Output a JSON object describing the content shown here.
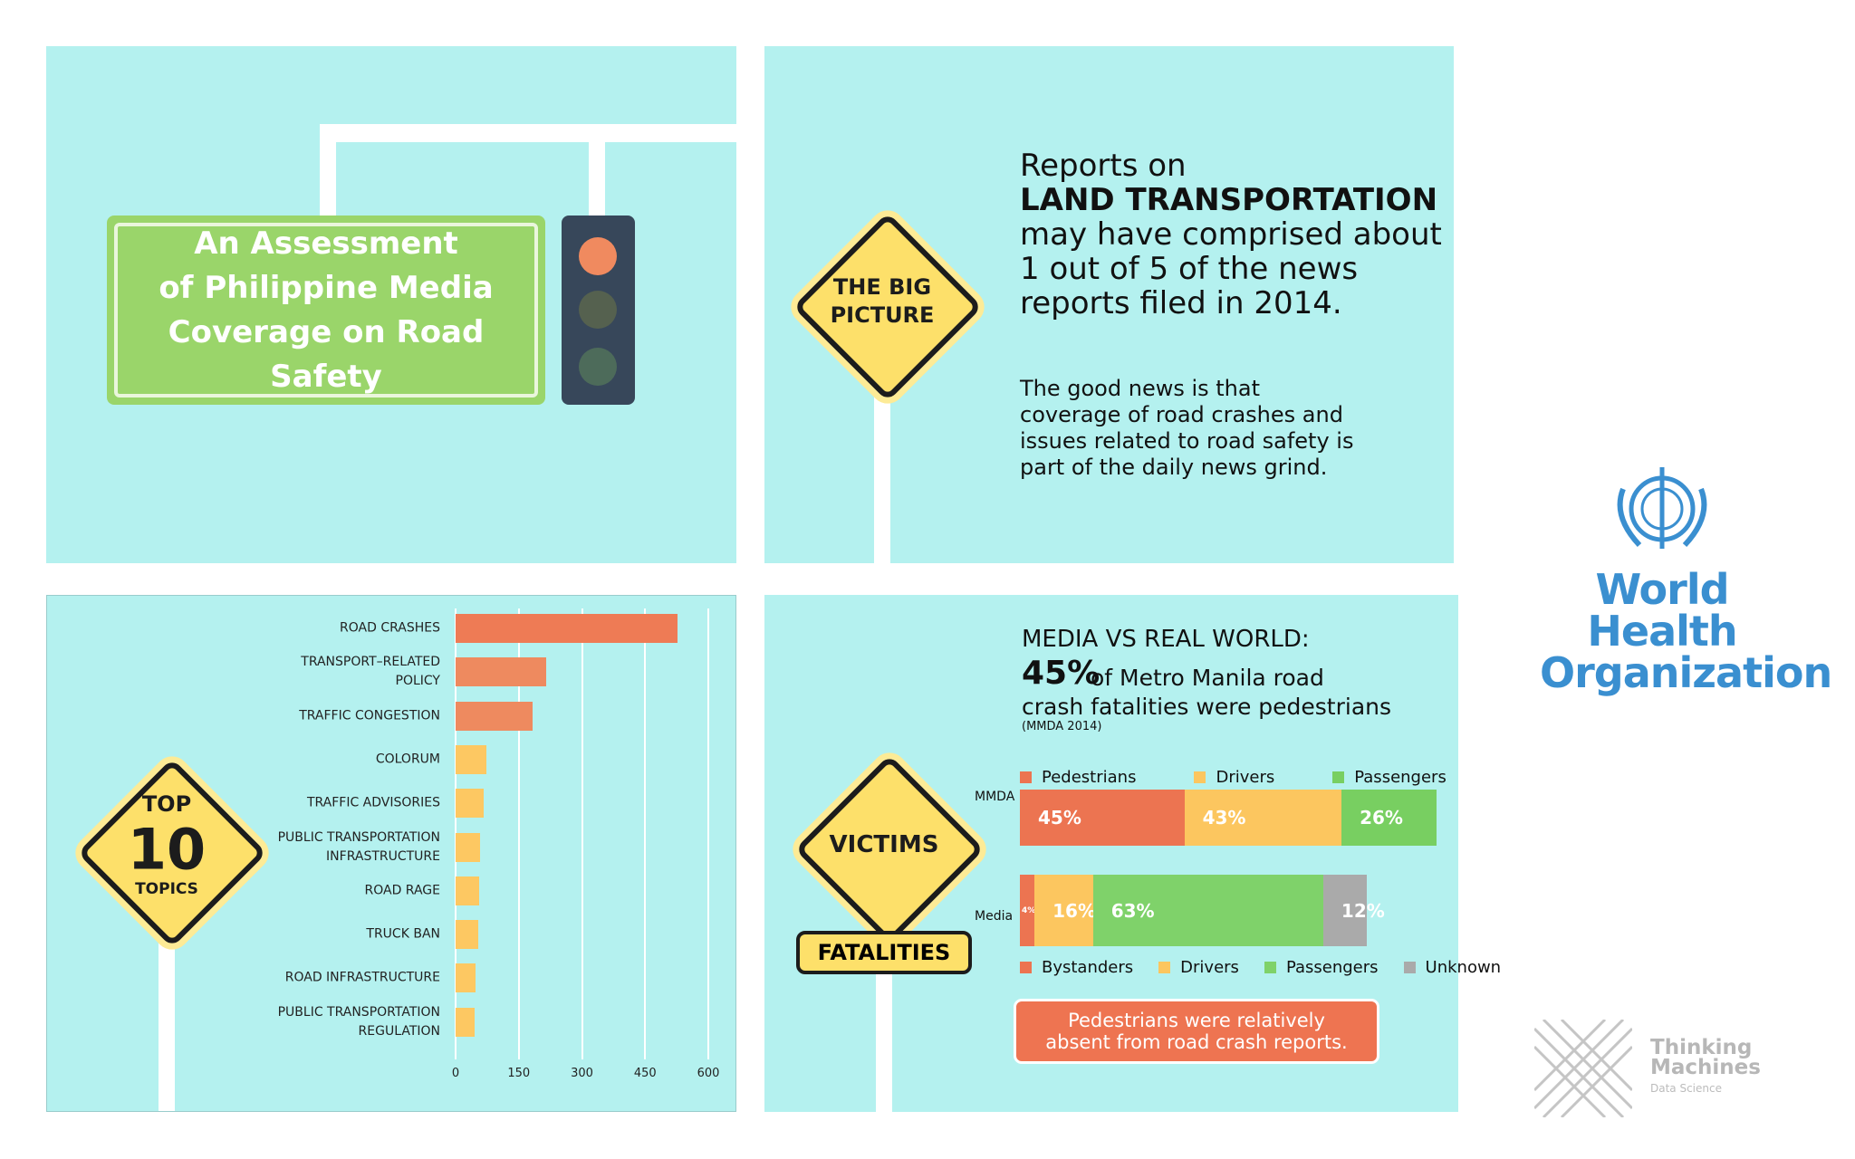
{
  "panels": {
    "title_sign": "An Assessment\nof Philippine Media\nCoverage on Road Safety",
    "big_picture": {
      "sign": "THE BIG\nPICTURE",
      "lead": "Reports on",
      "emphasis": "LAND TRANSPORTATION",
      "statement": "may have comprised about\n1 out of 5 of the news\nreports filed in 2014.",
      "note": "The good news is that\ncoverage of road crashes and\nissues related to road safety is\npart of the daily news grind."
    },
    "top_topics": {
      "sign_top": "TOP",
      "sign_number": "10",
      "sign_bottom": "TOPICS"
    },
    "victims": {
      "sign": "VICTIMS",
      "plate": "FATALITIES",
      "heading": "MEDIA VS REAL WORLD:",
      "highlight": "45%",
      "statement": "of Metro Manila road\ncrash fatalities were pedestrians",
      "source": "(MMDA 2014)",
      "callout": "Pedestrians were relatively\nabsent from road crash reports."
    }
  },
  "logos": {
    "who": "World Health\nOrganization",
    "tm_name": "Thinking\nMachines",
    "tm_sub": "Data Science"
  },
  "chart_data": [
    {
      "type": "bar",
      "orientation": "horizontal",
      "categories": [
        "ROAD CRASHES",
        "TRANSPORT–RELATED\nPOLICY",
        "TRAFFIC CONGESTION",
        "COLORUM",
        "TRAFFIC ADVISORIES",
        "PUBLIC TRANSPORTATION\nINFRASTRUCTURE",
        "ROAD RAGE",
        "TRUCK BAN",
        "ROAD INFRASTRUCTURE",
        "PUBLIC TRANSPORTATION\nREGULATION"
      ],
      "values": [
        527,
        216,
        182,
        73,
        67,
        59,
        56,
        53,
        48,
        45
      ],
      "colors": [
        "#ee7b55",
        "#ee8a5f",
        "#ee8a5f",
        "#fdc862",
        "#fdc862",
        "#fdc862",
        "#fdc862",
        "#fdc862",
        "#fdc862",
        "#fdc862"
      ],
      "xlim": [
        0,
        600
      ],
      "xticks": [
        0,
        150,
        300,
        450,
        600
      ],
      "grid": true
    },
    {
      "type": "stacked-bar",
      "orientation": "horizontal",
      "categories": [
        "MMDA"
      ],
      "series": [
        {
          "name": "Pedestrians",
          "color": "#ec7451",
          "values": [
            45
          ],
          "value_labels": [
            "45%"
          ]
        },
        {
          "name": "Drivers",
          "color": "#fcc65f",
          "values": [
            43
          ],
          "value_labels": [
            "43%"
          ]
        },
        {
          "name": "Passengers",
          "color": "#78cf61",
          "values": [
            26
          ],
          "value_labels": [
            "26%"
          ]
        }
      ],
      "legend": "top"
    },
    {
      "type": "stacked-bar",
      "orientation": "horizontal",
      "categories": [
        "Media"
      ],
      "series": [
        {
          "name": "Bystanders",
          "color": "#ec7451",
          "values": [
            4
          ],
          "value_labels": [
            "4%"
          ]
        },
        {
          "name": "Drivers",
          "color": "#fcc65f",
          "values": [
            16
          ],
          "value_labels": [
            "16%"
          ]
        },
        {
          "name": "Passengers",
          "color": "#7fd26a",
          "values": [
            63
          ],
          "value_labels": [
            "63%"
          ]
        },
        {
          "name": "Unknown",
          "color": "#aaaaaa",
          "values": [
            12
          ],
          "value_labels": [
            "12%"
          ]
        }
      ],
      "legend": "bottom"
    }
  ]
}
